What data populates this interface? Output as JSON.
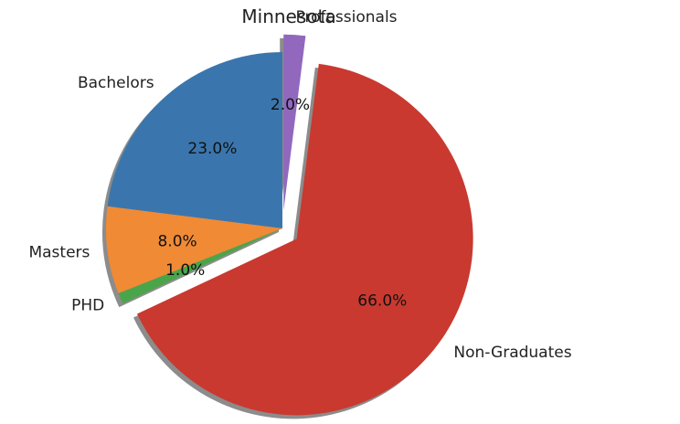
{
  "chart_data": {
    "type": "pie",
    "title": "Minnesota",
    "categories": [
      "Bachelors",
      "Masters",
      "PHD",
      "Non-Graduates",
      "Professionals"
    ],
    "values": [
      23.0,
      8.0,
      1.0,
      66.0,
      2.0
    ],
    "value_labels": [
      "23.0%",
      "8.0%",
      "1.0%",
      "66.0%",
      "2.0%"
    ],
    "colors": [
      "#3a76ad",
      "#f08a35",
      "#4aa54a",
      "#c9392f",
      "#9168bd"
    ],
    "exploded": [
      "Non-Graduates",
      "Professionals"
    ],
    "start_angle_deg": 90,
    "direction": "counterclockwise",
    "shadow": true,
    "legend": "none"
  }
}
